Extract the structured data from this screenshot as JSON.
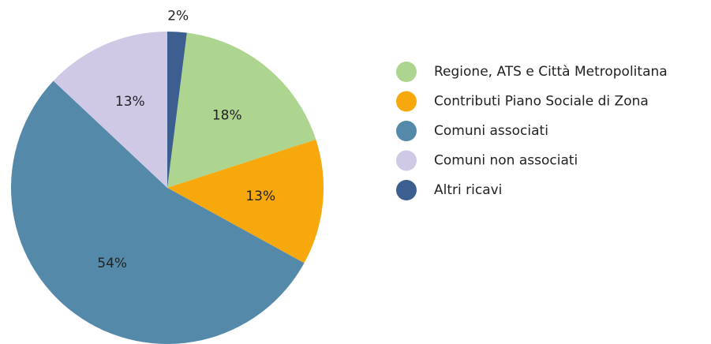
{
  "chart_data": {
    "type": "pie",
    "categories": [
      "Regione, ATS e Città Metropolitana",
      "Contributi Piano Sociale di Zona",
      "Comuni associati",
      "Comuni non associati",
      "Altri ricavi"
    ],
    "values": [
      18,
      13,
      54,
      13,
      2
    ],
    "value_labels": [
      "18%",
      "13%",
      "54%",
      "13%",
      "2%"
    ],
    "colors": [
      "#aed58f",
      "#f7a80d",
      "#5489aa",
      "#cfc9e6",
      "#3d5f8f"
    ],
    "legend": "right"
  }
}
